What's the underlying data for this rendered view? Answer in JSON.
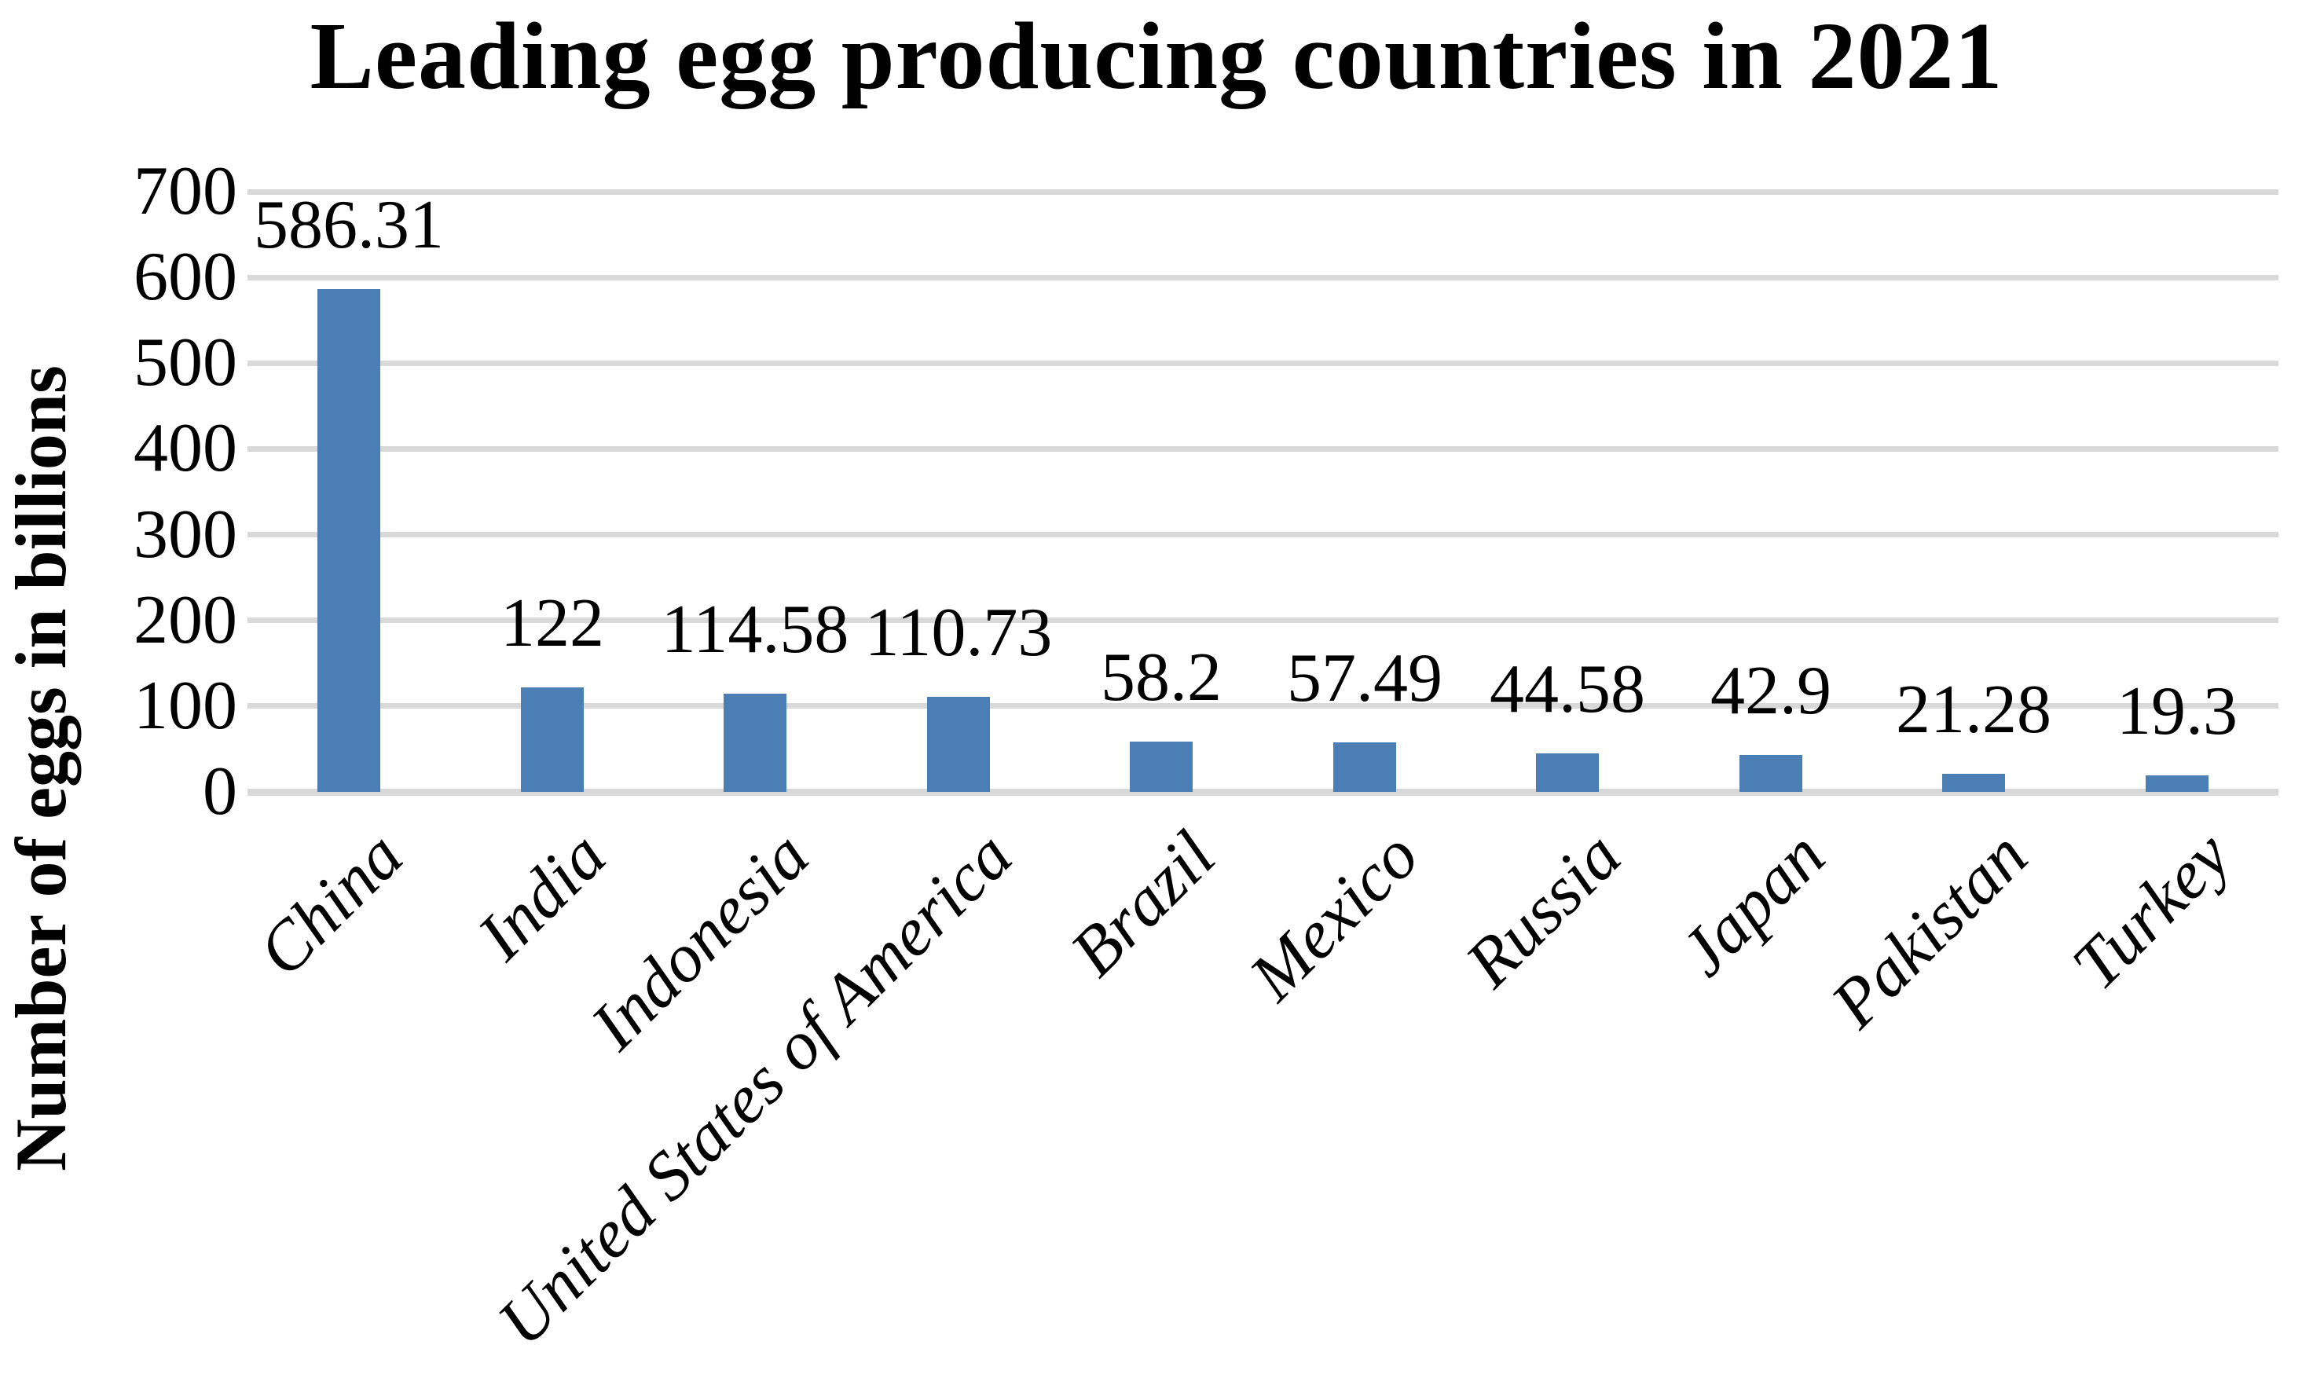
{
  "chart": {
    "title": "Leading egg producing countries in 2021",
    "y_axis_title": "Number of eggs in billions"
  },
  "chart_data": {
    "type": "bar",
    "title": "Leading egg producing countries in 2021",
    "xlabel": "",
    "ylabel": "Number of eggs in billions",
    "categories": [
      "China",
      "India",
      "Indonesia",
      "United States of America",
      "Brazil",
      "Mexico",
      "Russia",
      "Japan",
      "Pakistan",
      "Turkey"
    ],
    "values": [
      586.31,
      122,
      114.58,
      110.73,
      58.2,
      57.49,
      44.58,
      42.9,
      21.28,
      19.3
    ],
    "value_labels": [
      "586.31",
      "122",
      "114.58",
      "110.73",
      "58.2",
      "57.49",
      "44.58",
      "42.9",
      "21.28",
      "19.3"
    ],
    "ylim": [
      0,
      700
    ],
    "yticks": [
      0,
      100,
      200,
      300,
      400,
      500,
      600,
      700
    ],
    "grid": "horizontal",
    "legend": "none",
    "colors": {
      "bar": "#4a7eb5",
      "gridline": "#d9d9d9",
      "text": "#000000",
      "background": "#ffffff"
    }
  }
}
